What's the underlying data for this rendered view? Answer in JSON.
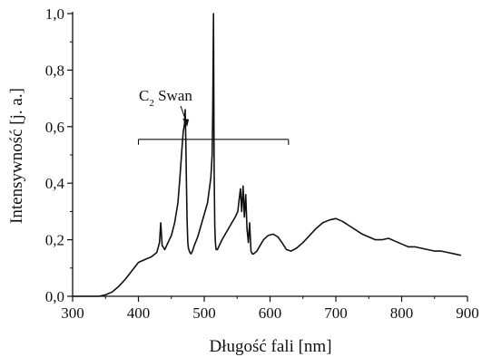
{
  "chart_data": {
    "type": "line",
    "title": "",
    "xlabel": "Długość fali [nm]",
    "ylabel": "Intensywność [j. a.]",
    "xlim": [
      300,
      900
    ],
    "ylim": [
      0.0,
      1.0
    ],
    "x_ticks": [
      300,
      400,
      500,
      600,
      700,
      800,
      900
    ],
    "x_tick_labels": [
      "300",
      "400",
      "500",
      "600",
      "700",
      "800",
      "900"
    ],
    "y_ticks": [
      0.0,
      0.2,
      0.4,
      0.6,
      0.8,
      1.0
    ],
    "y_tick_labels": [
      "0,0",
      "0,2",
      "0,4",
      "0,6",
      "0,8",
      "1,0"
    ],
    "grid": false,
    "line_color": "#111111",
    "series": [
      {
        "x": [
          300,
          340,
          350,
          360,
          370,
          380,
          390,
          400,
          410,
          420,
          428,
          432,
          434,
          436,
          440,
          445,
          450,
          455,
          460,
          463,
          466,
          468,
          470,
          471,
          472,
          473,
          474,
          475,
          476,
          478,
          480,
          482,
          485,
          490,
          495,
          500,
          505,
          510,
          512,
          513,
          514,
          515,
          516,
          517,
          518,
          520,
          523,
          527,
          532,
          537,
          542,
          547,
          551,
          553,
          555,
          557,
          559,
          561,
          563,
          565,
          567,
          569,
          571,
          573,
          575,
          580,
          585,
          590,
          597,
          605,
          612,
          618,
          625,
          632,
          640,
          650,
          660,
          670,
          680,
          690,
          700,
          710,
          720,
          730,
          740,
          750,
          760,
          770,
          780,
          790,
          800,
          810,
          820,
          830,
          840,
          850,
          860,
          870,
          880,
          890
        ],
        "y": [
          0.0,
          0.0,
          0.005,
          0.015,
          0.035,
          0.06,
          0.09,
          0.12,
          0.13,
          0.14,
          0.155,
          0.19,
          0.26,
          0.18,
          0.165,
          0.19,
          0.215,
          0.26,
          0.33,
          0.42,
          0.52,
          0.58,
          0.61,
          0.66,
          0.55,
          0.4,
          0.27,
          0.19,
          0.17,
          0.155,
          0.15,
          0.16,
          0.18,
          0.21,
          0.25,
          0.29,
          0.33,
          0.42,
          0.5,
          0.66,
          1.0,
          0.45,
          0.25,
          0.19,
          0.165,
          0.165,
          0.18,
          0.2,
          0.22,
          0.24,
          0.26,
          0.28,
          0.3,
          0.34,
          0.38,
          0.3,
          0.39,
          0.28,
          0.36,
          0.24,
          0.19,
          0.26,
          0.16,
          0.15,
          0.15,
          0.16,
          0.18,
          0.2,
          0.215,
          0.22,
          0.21,
          0.19,
          0.165,
          0.16,
          0.17,
          0.19,
          0.215,
          0.24,
          0.26,
          0.27,
          0.275,
          0.265,
          0.25,
          0.235,
          0.22,
          0.21,
          0.2,
          0.2,
          0.205,
          0.195,
          0.185,
          0.175,
          0.175,
          0.17,
          0.165,
          0.16,
          0.16,
          0.155,
          0.15,
          0.145
        ]
      }
    ],
    "annotations": [
      {
        "text_main": "C",
        "text_sub": "2",
        "text_rest": " Swan",
        "arrow_to": [
          474,
          0.6
        ],
        "bracket": {
          "x_from": 400,
          "x_to": 628,
          "y": 0.555
        }
      }
    ]
  }
}
